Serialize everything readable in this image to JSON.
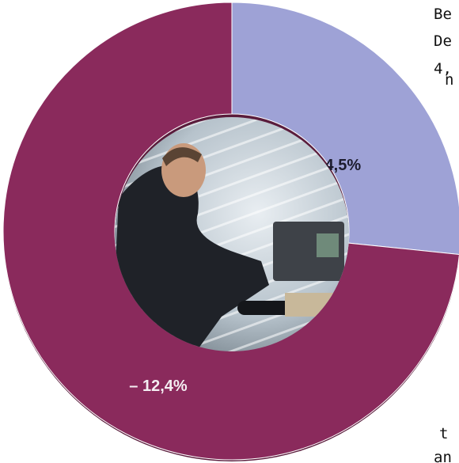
{
  "chart_data": {
    "type": "pie",
    "donut": true,
    "values": [
      -4.5,
      -12.4
    ],
    "value_labels": [
      "– 4,5%",
      "– 12,4%"
    ],
    "colors": [
      "#9ea2d6",
      "#8a2a5c"
    ],
    "label_colors": [
      "#1c1c2e",
      "#f4eef2"
    ]
  },
  "side_text": [
    "Be",
    "De",
    "4,",
    "n",
    "t",
    "an"
  ]
}
